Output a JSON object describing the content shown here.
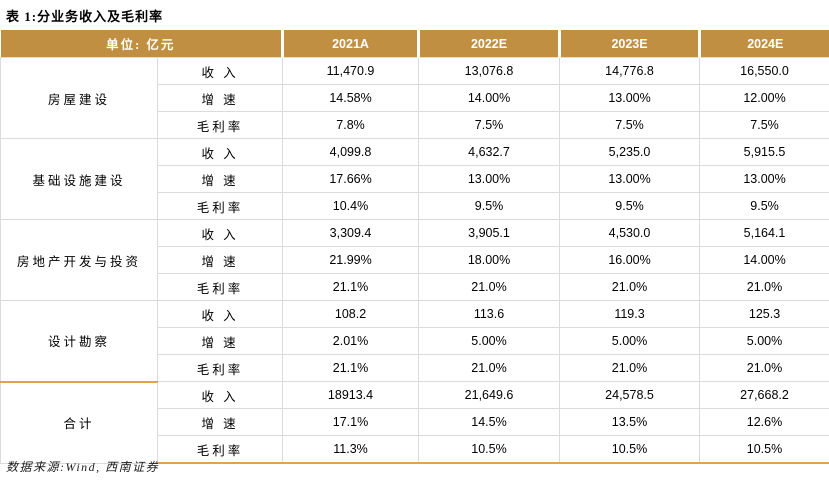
{
  "title": "表 1:分业务收入及毛利率",
  "colors": {
    "header_bg": "#C18F42",
    "accent_line": "#E2A347",
    "grid_line": "#DBDBDB",
    "header_text": "#ffffff"
  },
  "table": {
    "unit_header": "单位: 亿元",
    "year_headers": [
      "2021A",
      "2022E",
      "2023E",
      "2024E"
    ],
    "metric_labels": [
      "收 入",
      "增 速",
      "毛利率"
    ],
    "groups": [
      {
        "name": "房屋建设",
        "rows": [
          [
            "11,470.9",
            "13,076.8",
            "14,776.8",
            "16,550.0"
          ],
          [
            "14.58%",
            "14.00%",
            "13.00%",
            "12.00%"
          ],
          [
            "7.8%",
            "7.5%",
            "7.5%",
            "7.5%"
          ]
        ]
      },
      {
        "name": "基础设施建设",
        "rows": [
          [
            "4,099.8",
            "4,632.7",
            "5,235.0",
            "5,915.5"
          ],
          [
            "17.66%",
            "13.00%",
            "13.00%",
            "13.00%"
          ],
          [
            "10.4%",
            "9.5%",
            "9.5%",
            "9.5%"
          ]
        ]
      },
      {
        "name": "房地产开发与投资",
        "rows": [
          [
            "3,309.4",
            "3,905.1",
            "4,530.0",
            "5,164.1"
          ],
          [
            "21.99%",
            "18.00%",
            "16.00%",
            "14.00%"
          ],
          [
            "21.1%",
            "21.0%",
            "21.0%",
            "21.0%"
          ]
        ]
      },
      {
        "name": "设计勘察",
        "rows": [
          [
            "108.2",
            "113.6",
            "119.3",
            "125.3"
          ],
          [
            "2.01%",
            "5.00%",
            "5.00%",
            "5.00%"
          ],
          [
            "21.1%",
            "21.0%",
            "21.0%",
            "21.0%"
          ]
        ]
      },
      {
        "name": "合计",
        "rows": [
          [
            "18913.4",
            "21,649.6",
            "24,578.5",
            "27,668.2"
          ],
          [
            "17.1%",
            "14.5%",
            "13.5%",
            "12.6%"
          ],
          [
            "11.3%",
            "10.5%",
            "10.5%",
            "10.5%"
          ]
        ]
      }
    ]
  },
  "footer": "数据来源:Wind, 西南证券"
}
